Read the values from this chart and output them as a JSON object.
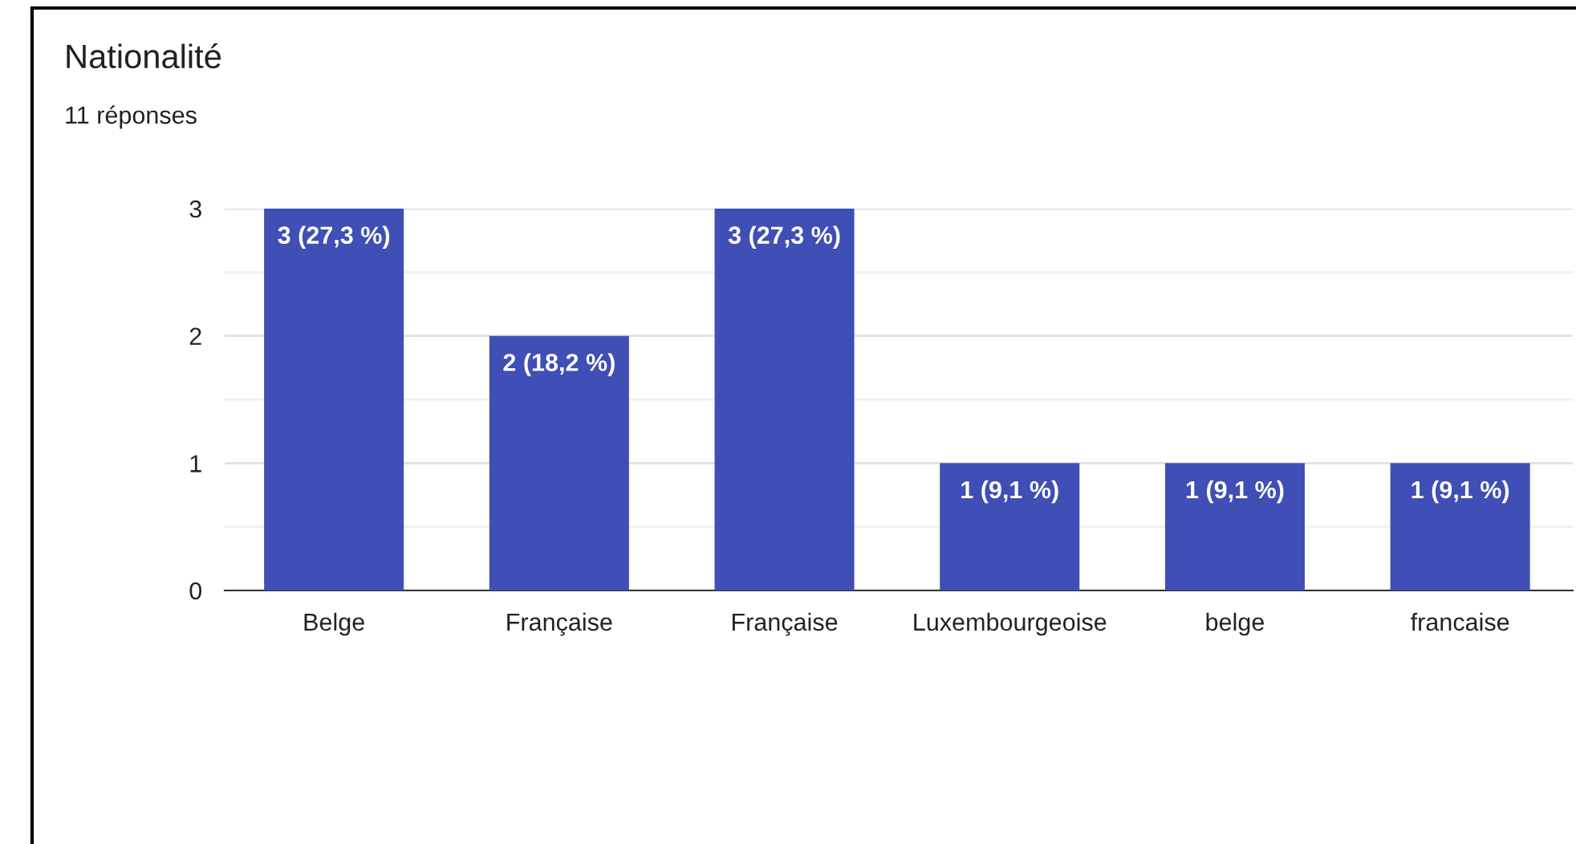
{
  "chart_data": {
    "type": "bar",
    "title": "Nationalité",
    "subtitle": "11 réponses",
    "categories": [
      "Belge",
      "Française",
      "Française",
      "Luxembourgeoise",
      "belge",
      "francaise"
    ],
    "values": [
      3,
      2,
      3,
      1,
      1,
      1
    ],
    "value_labels": [
      "3 (27,3 %)",
      "2 (18,2 %)",
      "3 (27,3 %)",
      "1 (9,1 %)",
      "1 (9,1 %)",
      "1 (9,1 %)"
    ],
    "color": "#3f4fb5",
    "ylim": [
      0,
      3
    ],
    "yticks": [
      0,
      {
        "value": 0.5,
        "label": null
      },
      1,
      {
        "value": 1.5,
        "label": null
      },
      2,
      {
        "value": 2.5,
        "label": null
      },
      3
    ],
    "grid": "y",
    "legend": false
  }
}
